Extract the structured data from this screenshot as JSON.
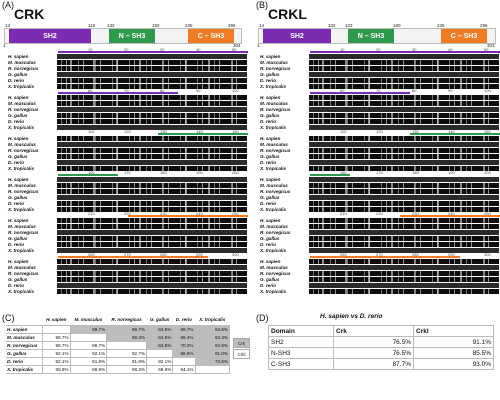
{
  "panels": {
    "a": {
      "letter": "(A)",
      "title": "CRK",
      "length": "304",
      "positions": [
        "1",
        "13",
        "118",
        "132",
        "192",
        "235",
        "296"
      ],
      "domains": [
        {
          "label": "SH2",
          "color": "#7a2db3"
        },
        {
          "label": "N – SH3",
          "color": "#2f9a4e"
        },
        {
          "label": "C – SH3",
          "color": "#f07d25"
        }
      ]
    },
    "b": {
      "letter": "(B)",
      "title": "CRKL",
      "length": "303",
      "positions": [
        "1",
        "14",
        "102",
        "123",
        "180",
        "235",
        "296"
      ],
      "domains": [
        {
          "label": "SH2",
          "color": "#7a2db3"
        },
        {
          "label": "N – SH3",
          "color": "#2f9a4e"
        },
        {
          "label": "C – SH3",
          "color": "#f07d25"
        }
      ]
    },
    "c": {
      "letter": "(C)"
    },
    "d": {
      "letter": "(D)",
      "title": "H. sapien vs D. rerio"
    }
  },
  "species": [
    "H. sapien",
    "M. musculus",
    "R. norvegicus",
    "G. gallus",
    "D. rerio",
    "X. tropicalis"
  ],
  "ruler_a": [
    "10",
    "20",
    "30",
    "40",
    "50",
    "60",
    "70",
    "80",
    "90",
    "100",
    "110",
    "120",
    "130",
    "140",
    "150",
    "160",
    "170",
    "180",
    "190",
    "200",
    "210",
    "220",
    "230",
    "240",
    "250",
    "260",
    "270",
    "280",
    "290",
    "300",
    "310",
    "320",
    "323"
  ],
  "ruler_b": [
    "10",
    "20",
    "30",
    "40",
    "50",
    "60",
    "70",
    "80",
    "90",
    "100",
    "110",
    "120",
    "130",
    "140",
    "150",
    "160",
    "170",
    "180",
    "190",
    "200",
    "210",
    "220",
    "230",
    "240",
    "250",
    "260",
    "270",
    "280",
    "290",
    "300"
  ],
  "identity_table": {
    "headers": [
      "H. sapien",
      "M. musculus",
      "R. norvegicus",
      "G. gallus",
      "D. rerio",
      "X. tropicalis"
    ],
    "rows": [
      {
        "label": "H. sapien",
        "cells": [
          "",
          "99.7%",
          "99.7%",
          "84.9%",
          "69.7%",
          "84.6%"
        ]
      },
      {
        "label": "M. musculus",
        "cells": [
          "96.7%",
          "",
          "99.3%",
          "84.6%",
          "69.4%",
          "84.3%"
        ]
      },
      {
        "label": "R. norvegicus",
        "cells": [
          "96.7%",
          "98.7%",
          "",
          "84.6%",
          "70.0%",
          "84.9%"
        ]
      },
      {
        "label": "G. gallus",
        "cells": [
          "92.1%",
          "92.1%",
          "92.7%",
          "",
          "66.6%",
          "81.0%"
        ]
      },
      {
        "label": "D. rerio",
        "cells": [
          "82.1%",
          "81.8%",
          "81.8%",
          "82.1%",
          "",
          "73.6%"
        ]
      },
      {
        "label": "X. tropicalis",
        "cells": [
          "68.9%",
          "68.9%",
          "68.3%",
          "68.9%",
          "64.1%",
          ""
        ]
      }
    ],
    "legend": [
      {
        "label": "Crk",
        "color": "#bdbdbd"
      },
      {
        "label": "Crkl",
        "color": "#ffffff"
      }
    ]
  },
  "domain_table": {
    "headers": [
      "Domain",
      "Crk",
      "Crkl"
    ],
    "rows": [
      {
        "domain": "SH2",
        "crk": "76.5%",
        "crkl": "91.1%"
      },
      {
        "domain": "N-SH3",
        "crk": "76.5%",
        "crkl": "85.5%"
      },
      {
        "domain": "C-SH3",
        "crk": "87.7%",
        "crkl": "93.0%"
      }
    ]
  },
  "colors": {
    "sh2": "#7a2db3",
    "nsh3": "#2f9a4e",
    "csh3": "#f07d25",
    "crk_shade": "#bdbdbd"
  }
}
